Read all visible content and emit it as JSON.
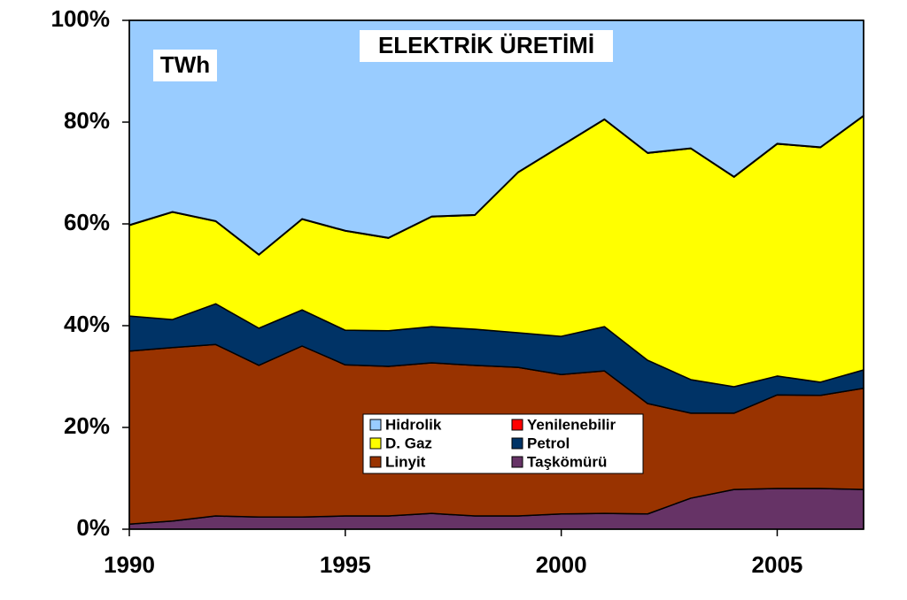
{
  "chart_data": {
    "type": "stacked-area",
    "title": "ELEKTRİK ÜRETİMİ",
    "unit_label": "TWh",
    "x": [
      1990,
      1991,
      1992,
      1993,
      1994,
      1995,
      1996,
      1997,
      1998,
      1999,
      2000,
      2001,
      2002,
      2003,
      2004,
      2005,
      2006,
      2007
    ],
    "xlim": [
      1990,
      2007
    ],
    "xticks": [
      1990,
      1995,
      2000,
      2005
    ],
    "ylim": [
      0,
      100
    ],
    "yticks": [
      {
        "value": 0,
        "label": "0%"
      },
      {
        "value": 20,
        "label": "20%"
      },
      {
        "value": 40,
        "label": "40%"
      },
      {
        "value": 60,
        "label": "60%"
      },
      {
        "value": 80,
        "label": "80%"
      },
      {
        "value": 100,
        "label": "100%"
      }
    ],
    "series": [
      {
        "name": "Taşkömürü",
        "color": "#663366",
        "values": [
          1.0,
          1.6,
          2.6,
          2.4,
          2.4,
          2.6,
          2.6,
          3.1,
          2.6,
          2.6,
          3.0,
          3.1,
          3.0,
          6.1,
          7.8,
          8.0,
          8.0,
          7.8
        ]
      },
      {
        "name": "Linyit",
        "color": "#993300",
        "values": [
          34.0,
          34.1,
          33.7,
          29.8,
          33.6,
          29.7,
          29.4,
          29.6,
          29.6,
          29.2,
          27.4,
          28.0,
          21.7,
          16.7,
          15.0,
          18.4,
          18.3,
          19.9
        ]
      },
      {
        "name": "Petrol",
        "color": "#003366",
        "values": [
          6.9,
          5.5,
          8.0,
          7.3,
          7.1,
          6.8,
          7.0,
          7.1,
          7.1,
          6.8,
          7.5,
          8.7,
          8.5,
          6.6,
          5.2,
          3.7,
          2.6,
          3.6
        ]
      },
      {
        "name": "D. Gaz",
        "color": "#ffff00",
        "values": [
          17.8,
          21.1,
          16.2,
          14.4,
          17.8,
          19.5,
          18.2,
          21.6,
          22.4,
          31.5,
          37.4,
          40.7,
          40.7,
          45.4,
          41.2,
          45.6,
          46.1,
          49.9
        ]
      },
      {
        "name": "Yenilenebilir",
        "color": "#ff0000",
        "values": [
          0.1,
          0.1,
          0.1,
          0.1,
          0.1,
          0.1,
          0.1,
          0.1,
          0.1,
          0.1,
          0.1,
          0.1,
          0.1,
          0.1,
          0.1,
          0.1,
          0.1,
          0.1
        ]
      },
      {
        "name": "Hidrolik",
        "color": "#99ccff",
        "values": [
          40.2,
          37.6,
          39.4,
          46.0,
          39.0,
          41.3,
          42.7,
          38.5,
          38.2,
          29.8,
          24.6,
          19.4,
          26.0,
          25.1,
          30.7,
          24.2,
          24.9,
          18.7
        ]
      }
    ]
  }
}
